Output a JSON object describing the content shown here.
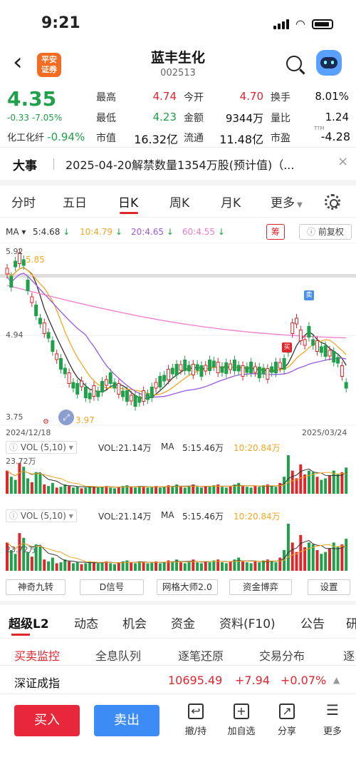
{
  "status_bar": {
    "time": "9:21"
  },
  "header": {
    "logo_text_1": "平安",
    "logo_text_2": "证券",
    "stock_name": "蓝丰生化",
    "stock_code": "002513"
  },
  "quote": {
    "price": "4.35",
    "change": "-0.33 -7.05%",
    "sector_name": "化工化纤",
    "sector_change": "-0.94%",
    "rows": [
      {
        "l1": "最高",
        "v1": "4.74",
        "l2": "今开",
        "v2": "4.70",
        "l3": "换手",
        "v3": "8.01%"
      },
      {
        "l1": "最低",
        "v1": "4.23",
        "l2": "金额",
        "v2": "9344万",
        "l3": "量比",
        "v3": "1.24"
      },
      {
        "l1": "市值",
        "v1": "16.32亿",
        "l2": "流通",
        "v2": "11.48亿",
        "l3": "市盈",
        "v3": "-4.28"
      }
    ],
    "ttm": "TTM"
  },
  "event": {
    "tag": "大事",
    "text": "2025-04-20解禁数量1354万股(预计值)（...",
    "close": "×"
  },
  "ktabs": [
    "分时",
    "五日",
    "日K",
    "周K",
    "月K",
    "更多"
  ],
  "ma_legend": {
    "label": "MA",
    "ma5": "5:4.68",
    "ma10": "10:4.79",
    "ma20": "20:4.65",
    "ma60": "60:4.55",
    "chou": "筹",
    "fuquan": "前复权"
  },
  "price_axis": {
    "top": "5.92",
    "mid": "4.94",
    "bottom": "3.75",
    "high_mark": "5.85",
    "low_mark": "3.97"
  },
  "date_axis": {
    "start": "2024/12/18",
    "end": "2025/03/24"
  },
  "markers": {
    "sell": "卖",
    "buy": "买"
  },
  "vol1": {
    "sel": "VOL (5,10)",
    "vol": "VOL:21.14万",
    "ma": "MA",
    "ma5": "5:15.46万",
    "ma10": "10:20.84万",
    "axis": "23.72万"
  },
  "vol2": {
    "sel": "VOL (5,10)",
    "vol": "VOL:21.14万",
    "ma": "MA",
    "ma5": "5:15.46万",
    "ma10": "10:20.84万",
    "axis": "23.72万"
  },
  "tools": [
    "神奇九转",
    "D信号",
    "网格大师2.0",
    "资金博弈",
    "设置"
  ],
  "bottom_tabs": [
    "超级L2",
    "动态",
    "机会",
    "资金",
    "资料(F10)",
    "公告",
    "研"
  ],
  "sub_tabs": [
    "买卖监控",
    "全息队列",
    "逐笔还原",
    "交易分布",
    "逐"
  ],
  "index": {
    "name": "深证成指",
    "value": "10695.49",
    "change": "+7.94",
    "pct": "+0.07%"
  },
  "actions": {
    "buy": "买入",
    "sell": "卖出",
    "cancel": "撤/持",
    "watch": "加自选",
    "share": "分享",
    "more": "更多"
  },
  "colors": {
    "up": "#e0262d",
    "down": "#1fa04a",
    "ma5": "#333333",
    "ma10": "#f5a623",
    "ma20": "#9b59e6",
    "ma60": "#f07ad0"
  }
}
